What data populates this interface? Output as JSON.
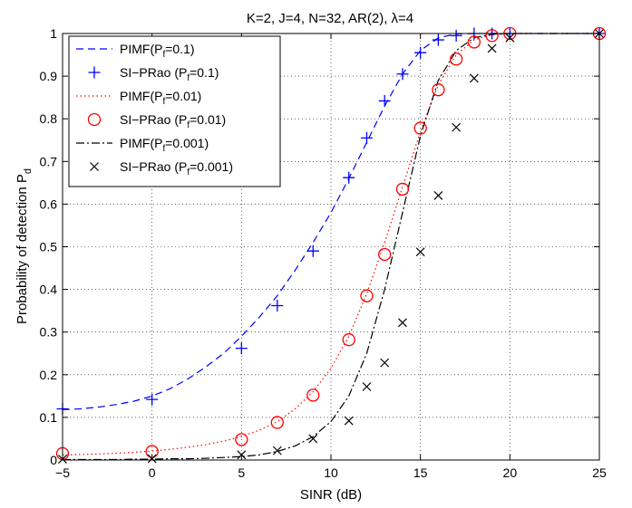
{
  "chart_data": {
    "type": "line",
    "title": "K=2, J=4, N=32, AR(2), λ=4",
    "xlabel": "SINR (dB)",
    "ylabel": "Probability of detection P",
    "ylabel_sub": "d",
    "xlim": [
      -5,
      25
    ],
    "ylim": [
      0,
      1
    ],
    "xticks": [
      -5,
      0,
      5,
      10,
      15,
      20,
      25
    ],
    "yticks": [
      0,
      0.1,
      0.2,
      0.3,
      0.4,
      0.5,
      0.6,
      0.7,
      0.8,
      0.9,
      1
    ],
    "xtick_labels": [
      "−5",
      "0",
      "5",
      "10",
      "15",
      "20",
      "25"
    ],
    "ytick_labels": [
      "0",
      "0.1",
      "0.2",
      "0.3",
      "0.4",
      "0.5",
      "0.6",
      "0.7",
      "0.8",
      "0.9",
      "1"
    ],
    "grid": true,
    "legend_position": "top-left",
    "series": [
      {
        "name": "PIMF(P",
        "name_sub": "f",
        "name_tail": "=0.1)",
        "style": "line",
        "dash": "8,5",
        "color": "#0000ff",
        "x": [
          -5,
          -4,
          -3,
          -2,
          -1,
          0,
          1,
          2,
          3,
          4,
          5,
          6,
          7,
          8,
          9,
          10,
          11,
          12,
          13,
          14,
          15,
          16,
          17,
          18,
          19,
          20,
          25
        ],
        "y": [
          0.118,
          0.12,
          0.124,
          0.13,
          0.138,
          0.15,
          0.167,
          0.19,
          0.218,
          0.25,
          0.29,
          0.335,
          0.385,
          0.445,
          0.51,
          0.58,
          0.66,
          0.745,
          0.83,
          0.905,
          0.96,
          0.99,
          0.999,
          1,
          1,
          1,
          1
        ]
      },
      {
        "name": "SI−PRao (P",
        "name_sub": "f",
        "name_tail": "=0.1)",
        "style": "marker",
        "marker": "plus",
        "color": "#0000ff",
        "x": [
          -5,
          0,
          5,
          7,
          9,
          11,
          12,
          13,
          14,
          15,
          16,
          17,
          18,
          19,
          20,
          25
        ],
        "y": [
          0.12,
          0.142,
          0.262,
          0.362,
          0.49,
          0.662,
          0.755,
          0.842,
          0.905,
          0.955,
          0.985,
          0.995,
          1,
          1,
          1,
          1
        ]
      },
      {
        "name": "PIMF(P",
        "name_sub": "f",
        "name_tail": "=0.01)",
        "style": "line",
        "dash": "1.5,3",
        "color": "#ff0000",
        "x": [
          -5,
          -4,
          -3,
          -2,
          -1,
          0,
          1,
          2,
          3,
          4,
          5,
          6,
          7,
          8,
          9,
          10,
          11,
          12,
          13,
          14,
          15,
          16,
          17,
          18,
          19,
          20,
          25
        ],
        "y": [
          0.012,
          0.013,
          0.014,
          0.016,
          0.018,
          0.021,
          0.025,
          0.03,
          0.036,
          0.044,
          0.055,
          0.07,
          0.09,
          0.12,
          0.16,
          0.215,
          0.29,
          0.39,
          0.51,
          0.64,
          0.77,
          0.88,
          0.95,
          0.985,
          0.997,
          1,
          1
        ]
      },
      {
        "name": "SI−PRao (P",
        "name_sub": "f",
        "name_tail": "=0.01)",
        "style": "marker",
        "marker": "circle",
        "color": "#ff0000",
        "x": [
          -5,
          0,
          5,
          7,
          9,
          11,
          12,
          13,
          14,
          15,
          16,
          17,
          18,
          19,
          20,
          25
        ],
        "y": [
          0.015,
          0.02,
          0.048,
          0.088,
          0.152,
          0.282,
          0.385,
          0.482,
          0.635,
          0.778,
          0.868,
          0.94,
          0.98,
          0.995,
          1,
          1
        ]
      },
      {
        "name": "PIMF(P",
        "name_sub": "f",
        "name_tail": "=0.001)",
        "style": "line",
        "dash": "9,3,2,3",
        "color": "#000000",
        "x": [
          -5,
          -4,
          -3,
          -2,
          -1,
          0,
          1,
          2,
          3,
          4,
          5,
          6,
          7,
          8,
          9,
          10,
          11,
          12,
          13,
          14,
          15,
          16,
          17,
          18,
          19,
          20,
          25
        ],
        "y": [
          0.001,
          0.001,
          0.001,
          0.001,
          0.002,
          0.002,
          0.003,
          0.003,
          0.004,
          0.006,
          0.008,
          0.012,
          0.02,
          0.033,
          0.055,
          0.09,
          0.15,
          0.25,
          0.4,
          0.58,
          0.76,
          0.89,
          0.96,
          0.99,
          0.998,
          1,
          1
        ]
      },
      {
        "name": "SI−PRao (P",
        "name_sub": "f",
        "name_tail": "=0.001)",
        "style": "marker",
        "marker": "cross",
        "color": "#000000",
        "x": [
          -5,
          0,
          5,
          7,
          9,
          11,
          12,
          13,
          14,
          15,
          16,
          17,
          18,
          19,
          20,
          25
        ],
        "y": [
          0.002,
          0.003,
          0.012,
          0.022,
          0.05,
          0.092,
          0.172,
          0.228,
          0.322,
          0.488,
          0.62,
          0.78,
          0.895,
          0.965,
          0.99,
          1
        ]
      }
    ]
  }
}
